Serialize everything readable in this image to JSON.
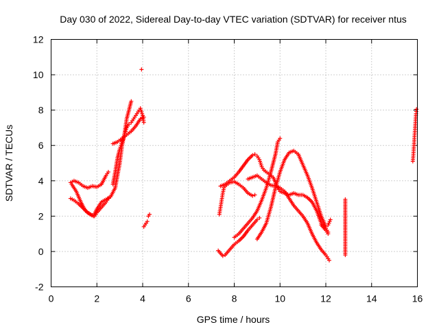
{
  "chart_data": {
    "type": "scatter",
    "title": "Day 030 of 2022, Sidereal Day-to-day VTEC variation (SDTVAR) for receiver ntus",
    "xlabel": "GPS time / hours",
    "ylabel": "SDTVAR / TECUs",
    "xlim": [
      0,
      16
    ],
    "ylim": [
      -2,
      12
    ],
    "xticks": [
      0,
      2,
      4,
      6,
      8,
      10,
      12,
      14,
      16
    ],
    "yticks": [
      -2,
      0,
      2,
      4,
      6,
      8,
      10,
      12
    ],
    "xtick_labels": [
      "0",
      "2",
      "4",
      "6",
      "8",
      "10",
      "12",
      "14",
      "16"
    ],
    "ytick_labels": [
      "-2",
      "0",
      "2",
      "4",
      "6",
      "8",
      "10",
      "12"
    ],
    "grid": true,
    "marker": "plus",
    "color": "#ff0000",
    "series": [
      {
        "name": "arc 1",
        "points": [
          [
            0.85,
            3.9
          ],
          [
            1.0,
            4.0
          ],
          [
            1.2,
            3.9
          ],
          [
            1.4,
            3.7
          ],
          [
            1.6,
            3.6
          ],
          [
            1.8,
            3.7
          ],
          [
            2.0,
            3.65
          ],
          [
            2.2,
            3.8
          ],
          [
            2.4,
            4.3
          ],
          [
            2.5,
            4.5
          ]
        ]
      },
      {
        "name": "arc 2",
        "points": [
          [
            0.85,
            3.0
          ],
          [
            1.0,
            2.9
          ],
          [
            1.2,
            2.7
          ],
          [
            1.4,
            2.45
          ],
          [
            1.6,
            2.2
          ],
          [
            1.8,
            2.05
          ],
          [
            1.9,
            2.0
          ],
          [
            2.0,
            2.2
          ],
          [
            2.2,
            2.5
          ],
          [
            2.4,
            2.8
          ],
          [
            2.5,
            3.0
          ]
        ]
      },
      {
        "name": "arc 3",
        "points": [
          [
            0.9,
            3.8
          ],
          [
            1.1,
            3.4
          ],
          [
            1.3,
            2.8
          ],
          [
            1.5,
            2.3
          ],
          [
            1.7,
            2.1
          ],
          [
            1.85,
            2.0
          ],
          [
            2.0,
            2.4
          ],
          [
            2.2,
            2.8
          ],
          [
            2.4,
            2.95
          ],
          [
            2.6,
            3.1
          ],
          [
            2.8,
            3.6
          ],
          [
            3.0,
            5.0
          ],
          [
            3.1,
            6.0
          ],
          [
            3.2,
            6.6
          ],
          [
            3.3,
            7.5
          ],
          [
            3.4,
            8.0
          ],
          [
            3.5,
            8.5
          ]
        ]
      },
      {
        "name": "arc 4",
        "points": [
          [
            2.7,
            3.8
          ],
          [
            2.8,
            4.5
          ],
          [
            2.9,
            5.3
          ],
          [
            3.0,
            5.8
          ],
          [
            3.1,
            6.2
          ],
          [
            3.2,
            6.6
          ],
          [
            3.3,
            7.0
          ],
          [
            3.4,
            7.2
          ],
          [
            3.5,
            7.3
          ],
          [
            3.6,
            7.5
          ],
          [
            3.7,
            7.7
          ],
          [
            3.8,
            7.9
          ],
          [
            3.9,
            8.1
          ],
          [
            4.0,
            7.7
          ],
          [
            4.05,
            7.3
          ]
        ]
      },
      {
        "name": "arc 5",
        "points": [
          [
            2.7,
            6.1
          ],
          [
            2.9,
            6.2
          ],
          [
            3.1,
            6.4
          ],
          [
            3.3,
            6.6
          ],
          [
            3.5,
            6.8
          ],
          [
            3.7,
            7.1
          ],
          [
            3.9,
            7.5
          ],
          [
            4.05,
            7.6
          ]
        ]
      },
      {
        "name": "arc 6",
        "points": [
          [
            3.95,
            10.3
          ]
        ]
      },
      {
        "name": "arc 7",
        "points": [
          [
            4.05,
            1.4
          ],
          [
            4.1,
            1.5
          ],
          [
            4.15,
            1.6
          ],
          [
            4.2,
            1.7
          ]
        ]
      },
      {
        "name": "arc 8",
        "points": [
          [
            4.25,
            2.0
          ],
          [
            4.3,
            2.1
          ]
        ]
      },
      {
        "name": "arc 9",
        "points": [
          [
            7.35,
            2.1
          ],
          [
            7.4,
            2.5
          ],
          [
            7.45,
            2.9
          ],
          [
            7.5,
            3.3
          ],
          [
            7.55,
            3.6
          ],
          [
            7.6,
            3.7
          ],
          [
            7.8,
            3.9
          ],
          [
            8.0,
            3.95
          ],
          [
            8.2,
            3.8
          ],
          [
            8.4,
            3.6
          ],
          [
            8.6,
            3.3
          ],
          [
            8.8,
            3.15
          ],
          [
            8.9,
            3.2
          ]
        ]
      },
      {
        "name": "arc 10",
        "points": [
          [
            7.4,
            3.7
          ],
          [
            7.6,
            3.8
          ],
          [
            7.8,
            4.0
          ],
          [
            8.0,
            4.2
          ],
          [
            8.2,
            4.5
          ],
          [
            8.4,
            4.85
          ],
          [
            8.6,
            5.2
          ],
          [
            8.8,
            5.45
          ],
          [
            8.9,
            5.5
          ],
          [
            9.0,
            5.4
          ],
          [
            9.1,
            5.2
          ],
          [
            9.2,
            4.8
          ],
          [
            9.3,
            4.6
          ],
          [
            9.5,
            4.4
          ],
          [
            9.7,
            4.2
          ],
          [
            9.9,
            3.6
          ],
          [
            10.0,
            3.4
          ],
          [
            10.2,
            3.3
          ],
          [
            10.4,
            3.2
          ],
          [
            10.6,
            3.3
          ],
          [
            10.8,
            3.2
          ],
          [
            11.0,
            3.2
          ],
          [
            11.2,
            3.05
          ],
          [
            11.4,
            2.8
          ],
          [
            11.6,
            2.3
          ],
          [
            11.8,
            1.6
          ],
          [
            12.0,
            1.3
          ],
          [
            12.1,
            1.1
          ]
        ]
      },
      {
        "name": "arc 11",
        "points": [
          [
            7.3,
            0.05
          ],
          [
            7.4,
            -0.1
          ],
          [
            7.5,
            -0.25
          ],
          [
            7.6,
            -0.2
          ],
          [
            7.8,
            0.1
          ],
          [
            8.0,
            0.4
          ],
          [
            8.2,
            0.6
          ],
          [
            8.4,
            0.85
          ],
          [
            8.6,
            1.2
          ],
          [
            8.8,
            1.5
          ],
          [
            9.0,
            1.8
          ],
          [
            9.1,
            1.9
          ]
        ]
      },
      {
        "name": "arc 12",
        "points": [
          [
            8.0,
            0.8
          ],
          [
            8.2,
            1.0
          ],
          [
            8.4,
            1.3
          ],
          [
            8.6,
            1.6
          ],
          [
            8.8,
            1.9
          ],
          [
            9.0,
            2.3
          ],
          [
            9.2,
            2.9
          ],
          [
            9.4,
            3.6
          ],
          [
            9.6,
            4.5
          ],
          [
            9.8,
            5.5
          ],
          [
            9.9,
            6.2
          ],
          [
            10.0,
            6.4
          ]
        ]
      },
      {
        "name": "arc 13",
        "points": [
          [
            9.0,
            0.7
          ],
          [
            9.2,
            1.1
          ],
          [
            9.4,
            1.6
          ],
          [
            9.6,
            2.5
          ],
          [
            9.8,
            3.6
          ],
          [
            10.0,
            4.5
          ],
          [
            10.2,
            5.2
          ],
          [
            10.4,
            5.6
          ],
          [
            10.6,
            5.7
          ],
          [
            10.8,
            5.5
          ],
          [
            11.0,
            4.9
          ],
          [
            11.2,
            4.3
          ],
          [
            11.4,
            3.6
          ],
          [
            11.6,
            2.8
          ],
          [
            11.8,
            2.0
          ],
          [
            12.0,
            1.4
          ],
          [
            12.1,
            1.5
          ],
          [
            12.2,
            1.8
          ]
        ]
      },
      {
        "name": "arc 14",
        "points": [
          [
            8.6,
            4.1
          ],
          [
            8.8,
            4.2
          ],
          [
            9.0,
            4.3
          ],
          [
            9.2,
            4.1
          ],
          [
            9.4,
            3.9
          ],
          [
            9.6,
            3.75
          ],
          [
            9.8,
            3.7
          ],
          [
            10.0,
            3.6
          ],
          [
            10.2,
            3.4
          ],
          [
            10.4,
            3.0
          ],
          [
            10.6,
            2.6
          ],
          [
            10.8,
            2.3
          ],
          [
            11.0,
            2.0
          ],
          [
            11.2,
            1.6
          ],
          [
            11.4,
            1.0
          ],
          [
            11.6,
            0.5
          ],
          [
            11.8,
            0.1
          ],
          [
            12.0,
            -0.2
          ],
          [
            12.1,
            -0.4
          ],
          [
            12.15,
            -0.5
          ]
        ]
      },
      {
        "name": "arc 15",
        "points": [
          [
            11.8,
            1.5
          ],
          [
            12.0,
            1.2
          ],
          [
            12.1,
            1.0
          ]
        ]
      },
      {
        "name": "arc 16",
        "points": [
          [
            12.85,
            2.95
          ],
          [
            12.85,
            1.05
          ],
          [
            12.85,
            -0.2
          ]
        ]
      },
      {
        "name": "arc 17",
        "points": [
          [
            15.8,
            5.1
          ],
          [
            15.82,
            5.4
          ],
          [
            15.84,
            5.8
          ],
          [
            15.86,
            6.2
          ],
          [
            15.88,
            6.6
          ],
          [
            15.9,
            7.0
          ],
          [
            15.92,
            7.4
          ],
          [
            15.94,
            7.8
          ],
          [
            15.96,
            8.05
          ]
        ]
      }
    ]
  }
}
